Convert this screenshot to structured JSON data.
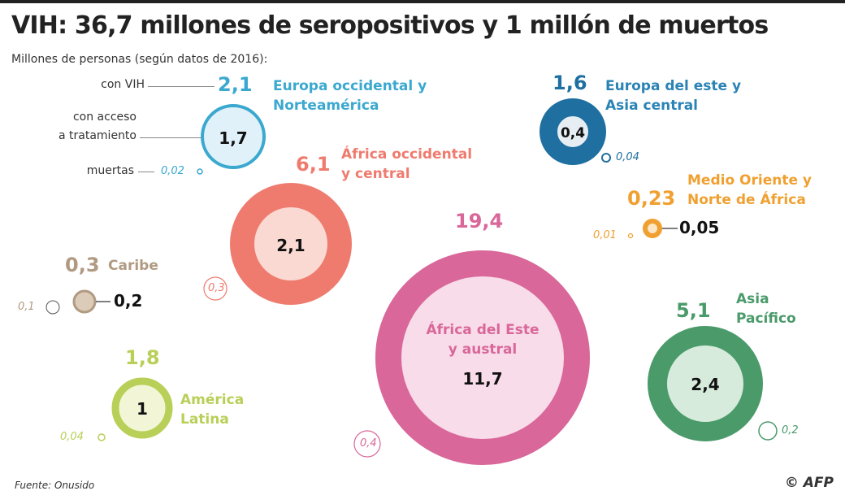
{
  "title": "VIH: 36,7 millones de seropositivos y 1 millón de muertos",
  "subtitle": "Millones de personas (según datos de 2016):",
  "legend": {
    "with_hiv": "con VIH",
    "treatment": "con acceso\na tratamiento",
    "treatment_l1": "con acceso",
    "treatment_l2": "a tratamiento",
    "deaths": "muertas"
  },
  "regions": [
    {
      "name_l1": "Europa occidental y",
      "name_l2": "Norteamérica",
      "hiv": "2,1",
      "treatment": "1,7",
      "deaths": "0,02",
      "color": "#3aa8cf",
      "fill": "#e1f1f9"
    },
    {
      "name_l1": "África occidental",
      "name_l2": "y central",
      "hiv": "6,1",
      "treatment": "2,1",
      "deaths": "0,3",
      "color": "#ef7b6e",
      "fill": "#f9d9d2"
    },
    {
      "name_l1": "África del Este",
      "name_l2": "y austral",
      "hiv": "19,4",
      "treatment": "11,7",
      "deaths": "0,4",
      "color": "#d9679a",
      "fill": "#f8dce9"
    },
    {
      "name_l1": "Europa del este y",
      "name_l2": "Asia central",
      "hiv": "1,6",
      "treatment": "0,4",
      "deaths": "0,04",
      "color": "#1f6fa0",
      "fill": "#e6eef4"
    },
    {
      "name_l1": "Medio Oriente y",
      "name_l2": "Norte de África",
      "hiv": "0,23",
      "treatment": "0,05",
      "deaths": "0,01",
      "color": "#f0a030",
      "fill": "#fbe6c6"
    },
    {
      "name_l1": "Caribe",
      "hiv": "0,3",
      "treatment": "0,2",
      "deaths": "0,1",
      "color": "#b09a82",
      "fill": "#dccbb8"
    },
    {
      "name_l1": "América",
      "name_l2": "Latina",
      "hiv": "1,8",
      "treatment": "1",
      "deaths": "0,04",
      "color": "#b8cf58",
      "fill": "#f2f6d6"
    },
    {
      "name_l1": "Asia",
      "name_l2": "Pacífico",
      "hiv": "5,1",
      "treatment": "2,4",
      "deaths": "0,2",
      "color": "#4a9a6a",
      "fill": "#d6ebdc"
    }
  ],
  "source": "Fuente: Onusido",
  "credit": "© AFP"
}
